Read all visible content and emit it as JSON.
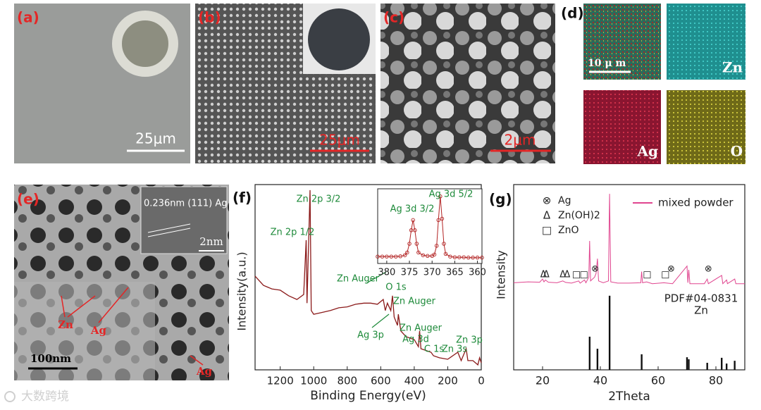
{
  "panels": {
    "a": {
      "label": "(a)",
      "scale": "25μm"
    },
    "b": {
      "label": "(b)",
      "scale": "25μm"
    },
    "c": {
      "label": "(c)",
      "scale": "2μm"
    },
    "d": {
      "label": "(d)",
      "scale": "10 μ m",
      "maps": [
        "Zn",
        "Ag",
        "O"
      ]
    },
    "e": {
      "label": "(e)",
      "scale": "100nm",
      "inset_text": "0.236nm (111) Ag",
      "inset_scale": "2nm",
      "annotations": [
        "Zn",
        "Ag",
        "Ag"
      ]
    }
  },
  "watermark": "大数跨境",
  "chart_data": [
    {
      "type": "line",
      "panel_label": "(f)",
      "xlabel": "Binding Energy(eV)",
      "ylabel": "Intensity(a.u.)",
      "xlim": [
        1350,
        0
      ],
      "xticks": [
        1200,
        1000,
        800,
        600,
        400,
        200,
        0
      ],
      "ylim": [
        0,
        100
      ],
      "x": [
        1350,
        1300,
        1250,
        1200,
        1150,
        1100,
        1060,
        1045,
        1040,
        1022,
        1015,
        1000,
        950,
        900,
        850,
        800,
        750,
        700,
        660,
        620,
        585,
        573,
        560,
        540,
        530,
        520,
        500,
        495,
        480,
        450,
        400,
        375,
        368,
        360,
        300,
        285,
        250,
        200,
        140,
        120,
        90,
        80,
        50,
        20,
        10,
        0
      ],
      "series": [
        {
          "color": "#8b1a1a",
          "values": [
            50.6,
            45.6,
            43.7,
            43,
            40,
            38,
            40.7,
            70,
            36,
            97,
            32,
            30,
            31,
            32,
            33.5,
            34,
            35.4,
            36,
            36,
            35.4,
            38,
            32,
            36,
            32,
            40,
            28.5,
            24,
            30,
            21,
            18,
            16.3,
            12.5,
            21,
            11.4,
            9.5,
            7.6,
            6.5,
            5.7,
            9.5,
            5,
            11.4,
            5,
            5,
            2.7,
            6.5,
            3.8
          ]
        }
      ],
      "annotations": [
        "Zn 2p 3/2",
        "Zn 2p 1/2",
        "Zn Auger",
        "O 1s",
        "Zn Auger",
        "Ag 3p",
        "Zn Auger",
        "Ag 3d",
        "C 1s",
        "Zn 3s",
        "Zn 3p"
      ]
    },
    {
      "type": "line",
      "xlim": [
        382,
        359
      ],
      "xticks": [
        380,
        375,
        370,
        365,
        360
      ],
      "ylim": [
        0,
        100
      ],
      "x": [
        382,
        381,
        380,
        379,
        378,
        377,
        376,
        375.5,
        375,
        374.6,
        374.2,
        373.8,
        373.4,
        373,
        372,
        371,
        370,
        369.5,
        369,
        368.6,
        368.2,
        367.8,
        367.4,
        367,
        366,
        365,
        364,
        363,
        362,
        361,
        360,
        359
      ],
      "series": [
        {
          "color": "#b22222",
          "values": [
            6,
            6,
            6,
            6,
            6,
            6.5,
            8,
            12,
            25,
            45,
            60,
            45,
            25,
            12,
            8,
            7,
            7,
            9,
            22,
            60,
            95,
            62,
            25,
            10,
            6,
            5,
            5,
            5,
            4.5,
            4.5,
            4.5,
            4.5
          ]
        }
      ],
      "annotations": [
        "Ag 3d 3/2",
        "Ag 3d 5/2"
      ]
    },
    {
      "type": "line",
      "panel_label": "(g)",
      "xlabel": "2Theta",
      "ylabel": "Intensity",
      "xlim": [
        10,
        90
      ],
      "xticks": [
        20,
        40,
        60,
        80
      ],
      "ylim": [
        0,
        100
      ],
      "series": [
        {
          "name": "mixed powder",
          "color": "#e0458f",
          "x": [
            10,
            15,
            19,
            20,
            20.5,
            21,
            22,
            25,
            27,
            28,
            30,
            32.5,
            33,
            34.5,
            35,
            36,
            36.3,
            36.6,
            38,
            38.5,
            39,
            39.4,
            41,
            42.8,
            43.2,
            43.6,
            46,
            50,
            54,
            54.3,
            54.6,
            56,
            58,
            62,
            65,
            70,
            70.3,
            70.6,
            71,
            76,
            77,
            77.4,
            82,
            82.4,
            83.7,
            84,
            86.5,
            86.9,
            90
          ],
          "values": [
            47,
            47.5,
            47.3,
            49,
            47.5,
            48.5,
            47.3,
            47,
            48,
            47.2,
            46.8,
            48,
            46.8,
            48.5,
            47,
            50,
            69.6,
            48,
            50,
            52,
            60,
            48,
            47,
            48,
            95,
            47.5,
            46.8,
            46.8,
            47,
            53,
            47,
            47.5,
            46.5,
            47,
            46.5,
            56,
            47,
            54,
            46.5,
            46.5,
            49,
            46.5,
            51,
            46.5,
            48.5,
            46.5,
            49,
            46.5,
            46.5
          ]
        },
        {
          "type": "bar",
          "name": "Zn",
          "label": "PDF#04-0831",
          "color": "#111111",
          "x": [
            36.3,
            39,
            43.2,
            54.3,
            70,
            70.6,
            77,
            82,
            83.7,
            86.5
          ],
          "values": [
            17.9,
            11.4,
            40,
            8.4,
            6.8,
            5.7,
            3.8,
            6.5,
            3.4,
            4.9
          ]
        }
      ],
      "phase_legend": [
        {
          "symbol": "⊗",
          "name": "Ag",
          "positions": [
            38.2,
            64.5,
            77.4
          ]
        },
        {
          "symbol": "Δ",
          "name": "Zn(OH)2",
          "positions": [
            20.3,
            21.3,
            27,
            28.5
          ]
        },
        {
          "symbol": "□",
          "name": "ZnO",
          "positions": [
            31.7,
            34.3,
            56.2,
            62.5
          ]
        }
      ]
    }
  ]
}
